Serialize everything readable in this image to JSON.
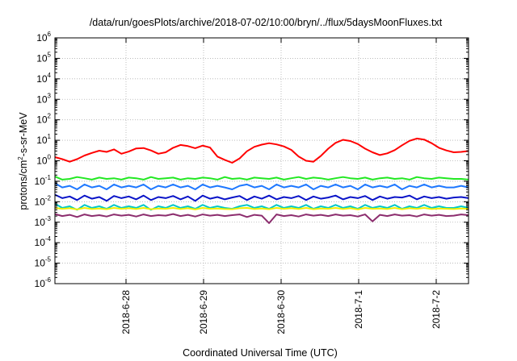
{
  "chart_data": {
    "type": "line",
    "title": "/data/run/goesPlots/archive/2018-07-02/10:00/bryn/../flux/5daysMoonFluxes.txt",
    "xlabel": "Coordinated Universal Time (UTC)",
    "ylabel": {
      "pre": "protons/cm",
      "sup": "2",
      "post": "-s-sr-MeV"
    },
    "yscale": "log",
    "ylim_exponent": [
      -6,
      6
    ],
    "y_ticks": [
      {
        "base": "10",
        "exp": "-6"
      },
      {
        "base": "10",
        "exp": "-5"
      },
      {
        "base": "10",
        "exp": "-4"
      },
      {
        "base": "10",
        "exp": "-3"
      },
      {
        "base": "10",
        "exp": "-2"
      },
      {
        "base": "10",
        "exp": "-1"
      },
      {
        "base": "10",
        "exp": "0"
      },
      {
        "base": "10",
        "exp": "1"
      },
      {
        "base": "10",
        "exp": "2"
      },
      {
        "base": "10",
        "exp": "3"
      },
      {
        "base": "10",
        "exp": "4"
      },
      {
        "base": "10",
        "exp": "5"
      },
      {
        "base": "10",
        "exp": "6"
      }
    ],
    "x_range_days": [
      "2018-06-27 02:00",
      "2018-07-02 10:00"
    ],
    "x_ticks": [
      "2018-6-28",
      "2018-6-29",
      "2018-6-30",
      "2018-7-1",
      "2018-7-2"
    ],
    "grid": true,
    "series": [
      {
        "color": "#ff0000",
        "values": [
          1.5,
          1.2,
          0.9,
          1.2,
          1.8,
          2.4,
          3.1,
          2.7,
          3.6,
          2.2,
          2.8,
          4.0,
          4.2,
          3.2,
          2.2,
          2.6,
          4.3,
          5.9,
          5.2,
          4.1,
          5.5,
          4.4,
          1.6,
          1.1,
          0.8,
          1.3,
          2.9,
          4.8,
          6.1,
          7.2,
          6.3,
          5.0,
          3.4,
          1.6,
          1.0,
          0.9,
          1.7,
          3.9,
          7.5,
          10.5,
          9.2,
          6.6,
          3.9,
          2.6,
          1.9,
          2.3,
          3.3,
          5.7,
          9.4,
          12.2,
          10.8,
          7.2,
          4.3,
          3.2,
          2.6,
          2.7,
          3.0
        ]
      },
      {
        "color": "#22e822",
        "values": [
          0.17,
          0.12,
          0.13,
          0.16,
          0.14,
          0.12,
          0.15,
          0.13,
          0.14,
          0.12,
          0.15,
          0.14,
          0.12,
          0.16,
          0.13,
          0.14,
          0.15,
          0.12,
          0.14,
          0.13,
          0.15,
          0.14,
          0.12,
          0.16,
          0.13,
          0.14,
          0.12,
          0.15,
          0.14,
          0.13,
          0.15,
          0.12,
          0.14,
          0.16,
          0.13,
          0.15,
          0.14,
          0.12,
          0.14,
          0.16,
          0.14,
          0.13,
          0.15,
          0.12,
          0.14,
          0.15,
          0.13,
          0.14,
          0.12,
          0.16,
          0.14,
          0.13,
          0.15,
          0.14,
          0.13,
          0.13,
          0.12
        ]
      },
      {
        "color": "#1e78ff",
        "values": [
          0.08,
          0.05,
          0.06,
          0.04,
          0.07,
          0.05,
          0.06,
          0.04,
          0.07,
          0.05,
          0.06,
          0.05,
          0.07,
          0.04,
          0.06,
          0.05,
          0.07,
          0.05,
          0.06,
          0.04,
          0.07,
          0.05,
          0.06,
          0.05,
          0.04,
          0.06,
          0.07,
          0.05,
          0.06,
          0.04,
          0.07,
          0.05,
          0.06,
          0.05,
          0.07,
          0.04,
          0.06,
          0.05,
          0.07,
          0.05,
          0.06,
          0.04,
          0.07,
          0.05,
          0.06,
          0.05,
          0.07,
          0.04,
          0.06,
          0.05,
          0.07,
          0.05,
          0.06,
          0.05,
          0.05,
          0.06,
          0.05
        ]
      },
      {
        "color": "#0a14c8",
        "values": [
          0.022,
          0.015,
          0.018,
          0.012,
          0.02,
          0.014,
          0.017,
          0.011,
          0.019,
          0.015,
          0.018,
          0.013,
          0.02,
          0.012,
          0.017,
          0.015,
          0.019,
          0.013,
          0.018,
          0.011,
          0.02,
          0.014,
          0.017,
          0.013,
          0.016,
          0.019,
          0.012,
          0.018,
          0.014,
          0.02,
          0.013,
          0.017,
          0.015,
          0.019,
          0.012,
          0.018,
          0.014,
          0.016,
          0.02,
          0.013,
          0.017,
          0.015,
          0.019,
          0.012,
          0.018,
          0.014,
          0.017,
          0.016,
          0.02,
          0.013,
          0.018,
          0.015,
          0.017,
          0.014,
          0.016,
          0.017,
          0.015
        ]
      },
      {
        "color": "#00c8c8",
        "values": [
          0.008,
          0.005,
          0.006,
          0.004,
          0.007,
          0.005,
          0.006,
          0.0045,
          0.007,
          0.005,
          0.006,
          0.005,
          0.007,
          0.004,
          0.006,
          0.005,
          0.007,
          0.005,
          0.006,
          0.0045,
          0.007,
          0.005,
          0.006,
          0.005,
          0.0045,
          0.006,
          0.007,
          0.005,
          0.006,
          0.0045,
          0.007,
          0.005,
          0.006,
          0.005,
          0.007,
          0.0045,
          0.006,
          0.005,
          0.007,
          0.005,
          0.006,
          0.0045,
          0.007,
          0.005,
          0.006,
          0.005,
          0.007,
          0.0045,
          0.006,
          0.005,
          0.007,
          0.005,
          0.006,
          0.005,
          0.005,
          0.006,
          0.005
        ]
      },
      {
        "color": "#f0f000",
        "values": [
          0.005,
          0.0045,
          0.0048,
          0.0042,
          0.005,
          0.0044,
          0.0047,
          0.0043,
          0.005,
          0.0045,
          0.0048,
          0.0044,
          0.005,
          0.0043,
          0.0047,
          0.0045,
          0.005,
          0.0044,
          0.0048,
          0.0042,
          0.005,
          0.0045,
          0.0047,
          0.0044,
          0.0043,
          0.0048,
          0.005,
          0.0044,
          0.0047,
          0.0043,
          0.005,
          0.0045,
          0.0048,
          0.0044,
          0.005,
          0.0043,
          0.0047,
          0.0045,
          0.005,
          0.0044,
          0.0048,
          0.0042,
          0.005,
          0.0045,
          0.0047,
          0.0044,
          0.005,
          0.0043,
          0.0048,
          0.0045,
          0.005,
          0.0044,
          0.0047,
          0.0045,
          0.0044,
          0.0047,
          0.0045
        ]
      },
      {
        "color": "#8c2d6e",
        "values": [
          0.0025,
          0.002,
          0.0023,
          0.0018,
          0.0024,
          0.002,
          0.0022,
          0.0019,
          0.0024,
          0.0021,
          0.0023,
          0.0019,
          0.0024,
          0.002,
          0.0022,
          0.0021,
          0.0025,
          0.002,
          0.0023,
          0.0019,
          0.0024,
          0.0021,
          0.0023,
          0.002,
          0.0022,
          0.0024,
          0.0018,
          0.0023,
          0.0021,
          0.0009,
          0.0024,
          0.002,
          0.0022,
          0.0019,
          0.0024,
          0.0021,
          0.0023,
          0.002,
          0.0024,
          0.0021,
          0.0022,
          0.0019,
          0.0024,
          0.0011,
          0.0023,
          0.002,
          0.0024,
          0.0021,
          0.0022,
          0.0019,
          0.0024,
          0.0021,
          0.0023,
          0.002,
          0.0021,
          0.0024,
          0.0022
        ]
      }
    ]
  }
}
